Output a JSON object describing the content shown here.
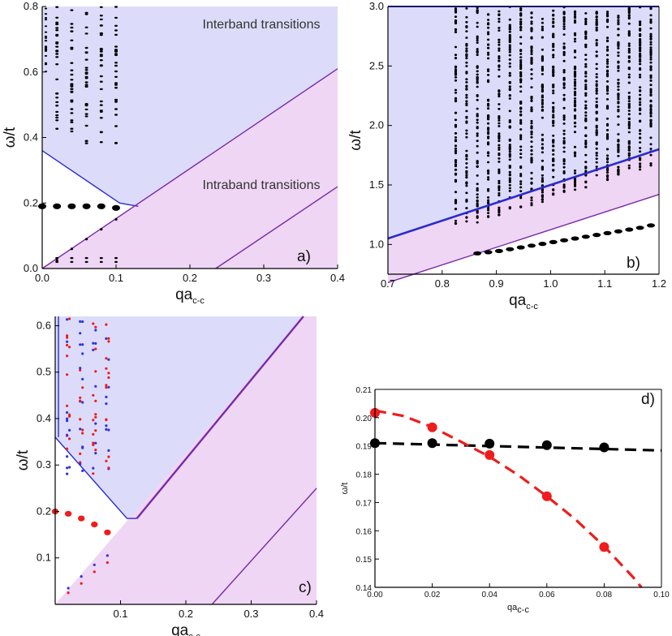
{
  "colors": {
    "interband_fill": "#dcdcfa",
    "intraband_fill": "#eed6f4",
    "interband_edge": "#2b2bd0",
    "intraband_edge": "#7a2aa8",
    "black_points": "#000000",
    "red_points": "#ee1c1c",
    "blue_points": "#3333dd"
  },
  "chart_data": [
    {
      "panel": "a",
      "tag": "a)",
      "type": "scatter",
      "xlabel": "qa",
      "xlabel_sub": "c-c",
      "ylabel": "ω/t",
      "xlim": [
        0.0,
        0.4
      ],
      "ylim": [
        0.0,
        0.8
      ],
      "xticks": [
        "0.0",
        "0.1",
        "0.2",
        "0.3",
        "0.4"
      ],
      "yticks": [
        "0.0",
        "0.2",
        "0.4",
        "0.6",
        "0.8"
      ],
      "annotations": [
        "Interband transitions",
        "Intraband transitions"
      ],
      "interband_region": [
        [
          0.0,
          0.36
        ],
        [
          0.105,
          0.2
        ],
        [
          0.13,
          0.19
        ],
        [
          0.4,
          0.61
        ],
        [
          0.4,
          0.8
        ],
        [
          0.0,
          0.8
        ]
      ],
      "intraband_region": [
        [
          0.0,
          0.0
        ],
        [
          0.4,
          0.61
        ],
        [
          0.4,
          0.0
        ]
      ],
      "intraband_upper_edge": [
        [
          0.0,
          0.0
        ],
        [
          0.4,
          0.61
        ]
      ],
      "intraband_lower_edge": [
        [
          0.235,
          0.0
        ],
        [
          0.4,
          0.25
        ]
      ],
      "plasmon_points": {
        "x": [
          0.0,
          0.02,
          0.04,
          0.06,
          0.08,
          0.1
        ],
        "y": [
          0.19,
          0.19,
          0.19,
          0.19,
          0.19,
          0.185
        ]
      },
      "low_points": {
        "x": [
          0.02,
          0.04,
          0.06,
          0.08,
          0.1
        ],
        "y": [
          0.025,
          0.06,
          0.09,
          0.12,
          0.15
        ]
      },
      "interband_columns": [
        0.02,
        0.04,
        0.06,
        0.08,
        0.1
      ]
    },
    {
      "panel": "b",
      "tag": "b)",
      "type": "scatter",
      "xlabel": "qa",
      "xlabel_sub": "c-c",
      "ylabel": "ω/t",
      "xlim": [
        0.7,
        1.2
      ],
      "ylim": [
        0.75,
        3.0
      ],
      "xticks": [
        "0.7",
        "0.8",
        "0.9",
        "1.0",
        "1.1",
        "1.2"
      ],
      "yticks": [
        "1.0",
        "1.5",
        "2.0",
        "2.5",
        "3.0"
      ],
      "interband_region": [
        [
          0.7,
          1.05
        ],
        [
          1.2,
          1.8
        ],
        [
          1.2,
          3.0
        ],
        [
          0.7,
          3.0
        ]
      ],
      "intraband_region": [
        [
          0.7,
          0.68
        ],
        [
          1.2,
          1.42
        ],
        [
          1.2,
          1.8
        ],
        [
          0.7,
          1.05
        ]
      ],
      "upper_edge": [
        [
          0.7,
          1.05
        ],
        [
          1.2,
          1.8
        ]
      ],
      "lower_edge": [
        [
          0.7,
          0.68
        ],
        [
          1.2,
          1.42
        ]
      ],
      "plasmon_points": {
        "x": [
          0.865,
          0.885,
          0.905,
          0.925,
          0.945,
          0.965,
          0.985,
          1.005,
          1.025,
          1.045,
          1.065,
          1.085,
          1.105,
          1.125,
          1.145,
          1.165,
          1.185
        ],
        "y": [
          0.925,
          0.935,
          0.945,
          0.96,
          0.975,
          0.99,
          1.005,
          1.02,
          1.035,
          1.05,
          1.065,
          1.08,
          1.095,
          1.11,
          1.125,
          1.14,
          1.16
        ]
      },
      "column_x": [
        0.825,
        0.845,
        0.865,
        0.885,
        0.905,
        0.925,
        0.945,
        0.965,
        0.985,
        1.005,
        1.025,
        1.045,
        1.065,
        1.085,
        1.105,
        1.125,
        1.145,
        1.165,
        1.185
      ]
    },
    {
      "panel": "c",
      "tag": "c)",
      "type": "scatter",
      "xlabel": "qa",
      "xlabel_sub": "c-c",
      "ylabel": "ω/t",
      "xlim": [
        0.0,
        0.4
      ],
      "ylim": [
        0.0,
        0.62
      ],
      "xticks": [
        "0.1",
        "0.2",
        "0.3",
        "0.4"
      ],
      "yticks": [
        "0.1",
        "0.2",
        "0.3",
        "0.4",
        "0.5",
        "0.6"
      ],
      "interband_region": [
        [
          0.0,
          0.36
        ],
        [
          0.11,
          0.185
        ],
        [
          0.125,
          0.185
        ],
        [
          0.4,
          0.62
        ],
        [
          0.0,
          0.62
        ]
      ],
      "intraband_region": [
        [
          0.0,
          0.0
        ],
        [
          0.38,
          0.62
        ],
        [
          0.4,
          0.62
        ],
        [
          0.4,
          0.0
        ]
      ],
      "upper_edge": [
        [
          0.125,
          0.185
        ],
        [
          0.38,
          0.62
        ]
      ],
      "lower_edge": [
        [
          0.24,
          0.0
        ],
        [
          0.4,
          0.25
        ]
      ],
      "red_plasmon": {
        "x": [
          0.0,
          0.02,
          0.04,
          0.06,
          0.08
        ],
        "y": [
          0.2,
          0.195,
          0.185,
          0.172,
          0.155
        ]
      },
      "red_low": {
        "x": [
          0.02,
          0.04,
          0.06,
          0.08
        ],
        "y": [
          0.025,
          0.045,
          0.07,
          0.09
        ]
      },
      "blue_low": {
        "x": [
          0.02,
          0.04,
          0.06,
          0.08
        ],
        "y": [
          0.035,
          0.06,
          0.085,
          0.105
        ]
      },
      "interband_columns": [
        0.02,
        0.04,
        0.06,
        0.08
      ]
    },
    {
      "panel": "d",
      "tag": "d)",
      "type": "scatter",
      "xlabel": "qa",
      "xlabel_sub": "c-c",
      "ylabel": "ω/t",
      "xlim": [
        0.0,
        0.1
      ],
      "ylim": [
        0.14,
        0.21
      ],
      "xticks": [
        "0.00",
        "0.02",
        "0.04",
        "0.06",
        "0.08",
        "0.10"
      ],
      "yticks": [
        "0.14",
        "0.15",
        "0.16",
        "0.17",
        "0.18",
        "0.19",
        "0.20",
        "0.21"
      ],
      "series": [
        {
          "color": "#000000",
          "x": [
            0.0,
            0.02,
            0.04,
            0.06,
            0.08
          ],
          "y": [
            0.191,
            0.191,
            0.1908,
            0.1903,
            0.1895
          ],
          "fit_x": [
            0.0,
            0.1
          ],
          "fit_y": [
            0.191,
            0.1884
          ]
        },
        {
          "color": "#ee1c1c",
          "x": [
            0.0,
            0.02,
            0.04,
            0.06,
            0.08
          ],
          "y": [
            0.2017,
            0.1966,
            0.1868,
            0.1722,
            0.1543
          ],
          "fit_x": [
            0.0,
            0.01,
            0.02,
            0.03,
            0.04,
            0.05,
            0.06,
            0.07,
            0.08,
            0.09,
            0.093
          ],
          "fit_y": [
            0.2025,
            0.2006,
            0.1967,
            0.1915,
            0.1862,
            0.1797,
            0.1722,
            0.164,
            0.1545,
            0.1437,
            0.14
          ]
        }
      ]
    }
  ]
}
